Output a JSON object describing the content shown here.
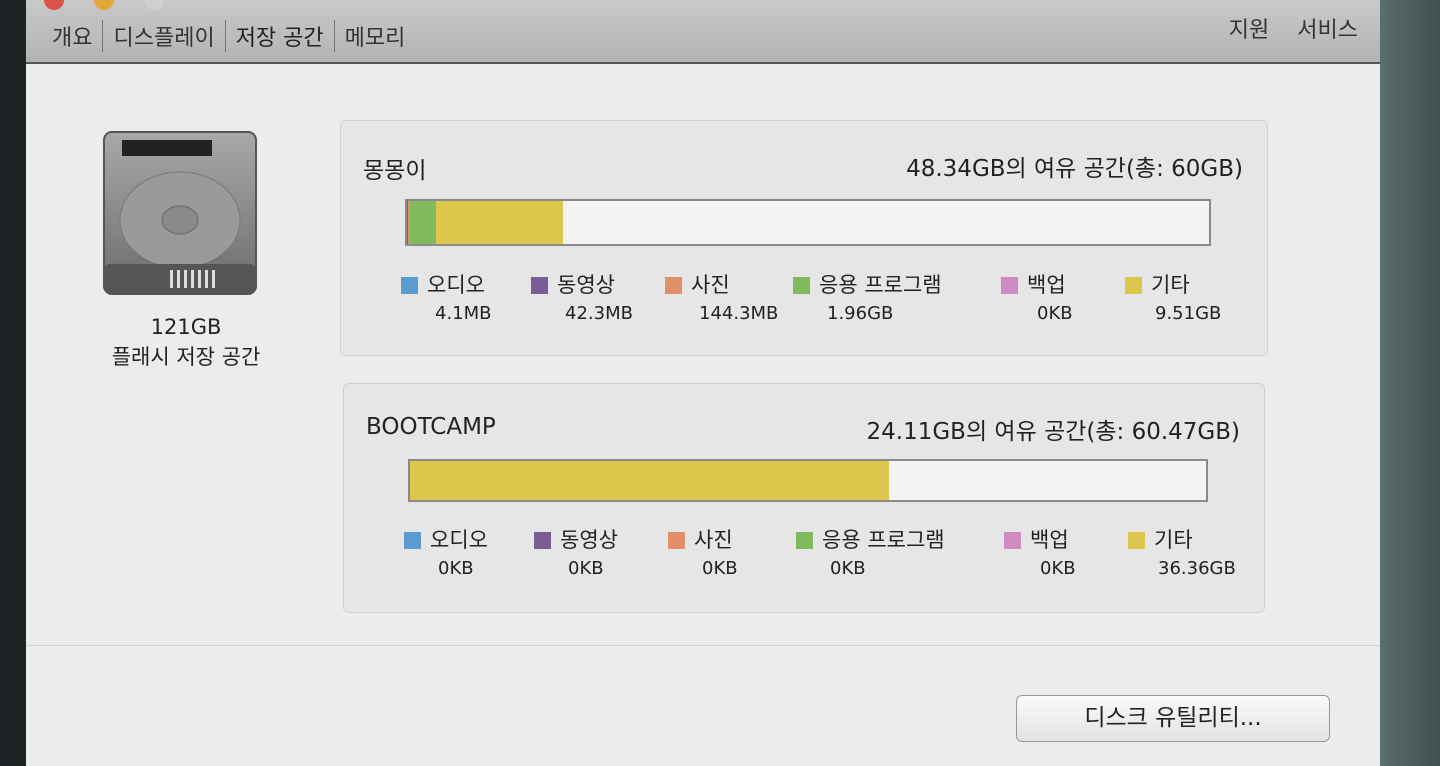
{
  "toolbar": {
    "tabs": [
      "개요",
      "디스플레이",
      "저장 공간",
      "메모리"
    ],
    "active_tab": "저장 공간",
    "right_links": [
      "지원",
      "서비스"
    ]
  },
  "disk": {
    "capacity": "121GB",
    "type": "플래시 저장 공간",
    "icon": "hard-drive-icon"
  },
  "legend_colors": {
    "audio": "#5b9bd0",
    "video": "#7a5d94",
    "photos": "#e2906c",
    "apps": "#7fbb5c",
    "backups": "#cf8cc2",
    "other": "#dcc64c"
  },
  "volumes": [
    {
      "name": "몽몽이",
      "free_text": "48.34GB의 여유 공간(총: 60GB)",
      "total_gb": 60,
      "categories": [
        {
          "key": "audio",
          "label": "오디오",
          "size": "4.1MB",
          "gb": 0.0041
        },
        {
          "key": "video",
          "label": "동영상",
          "size": "42.3MB",
          "gb": 0.0423
        },
        {
          "key": "photos",
          "label": "사진",
          "size": "144.3MB",
          "gb": 0.1443
        },
        {
          "key": "apps",
          "label": "응용 프로그램",
          "size": "1.96GB",
          "gb": 1.96
        },
        {
          "key": "backups",
          "label": "백업",
          "size": "0KB",
          "gb": 0
        },
        {
          "key": "other",
          "label": "기타",
          "size": "9.51GB",
          "gb": 9.51
        }
      ]
    },
    {
      "name": "BOOTCAMP",
      "free_text": "24.11GB의 여유 공간(총: 60.47GB)",
      "total_gb": 60.47,
      "categories": [
        {
          "key": "audio",
          "label": "오디오",
          "size": "0KB",
          "gb": 0
        },
        {
          "key": "video",
          "label": "동영상",
          "size": "0KB",
          "gb": 0
        },
        {
          "key": "photos",
          "label": "사진",
          "size": "0KB",
          "gb": 0
        },
        {
          "key": "apps",
          "label": "응용 프로그램",
          "size": "0KB",
          "gb": 0
        },
        {
          "key": "backups",
          "label": "백업",
          "size": "0KB",
          "gb": 0
        },
        {
          "key": "other",
          "label": "기타",
          "size": "36.36GB",
          "gb": 36.36
        }
      ]
    }
  ],
  "button": {
    "disk_utility": "디스크 유틸리티..."
  }
}
